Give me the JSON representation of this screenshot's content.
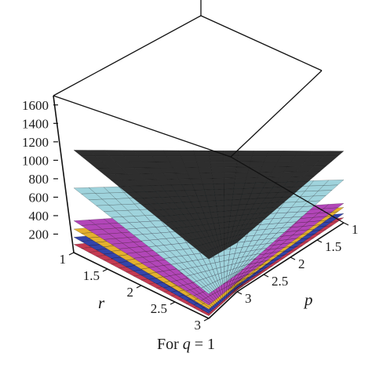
{
  "chart_data": {
    "type": "surface3d",
    "caption_prefix": "For ",
    "caption_var": "q",
    "caption_suffix": " = 1",
    "xlabel": "p",
    "ylabel": "r",
    "p_range": [
      1,
      3
    ],
    "r_range": [
      1,
      3
    ],
    "zlim": [
      0,
      1700
    ],
    "z_ticks": [
      "1600",
      "1400",
      "1200",
      "1000",
      "800",
      "600",
      "400",
      "200"
    ],
    "p_ticks": [
      "1",
      "1.5",
      "2",
      "2.5",
      "3"
    ],
    "r_ticks": [
      "1",
      "1.5",
      "2",
      "2.5",
      "3"
    ],
    "surfaces": [
      {
        "color": "#2e2e2e",
        "corners": {
          "p1r1": 1000,
          "p3r1": 700,
          "p1r3": 580,
          "p3r3": 480
        },
        "peak": 1000
      },
      {
        "color": "#9fd3dc",
        "corners": {
          "p1r1": 630,
          "p3r1": 420,
          "p1r3": 240,
          "p3r3": 170
        },
        "peak": 630
      },
      {
        "color": "#b246b8",
        "corners": {
          "p1r1": 310,
          "p3r1": 190,
          "p1r3": 130,
          "p3r3": 90
        },
        "peak": 310
      },
      {
        "color": "#e3b02e",
        "corners": {
          "p1r1": 230,
          "p3r1": 150,
          "p1r3": 90,
          "p3r3": 60
        },
        "peak": 230
      },
      {
        "color": "#3344aa",
        "corners": {
          "p1r1": 150,
          "p3r1": 90,
          "p1r3": 50,
          "p3r3": 35
        },
        "peak": 150
      },
      {
        "color": "#c43a52",
        "corners": {
          "p1r1": 80,
          "p3r1": 50,
          "p1r3": 25,
          "p3r3": 15
        },
        "peak": 80
      }
    ]
  }
}
